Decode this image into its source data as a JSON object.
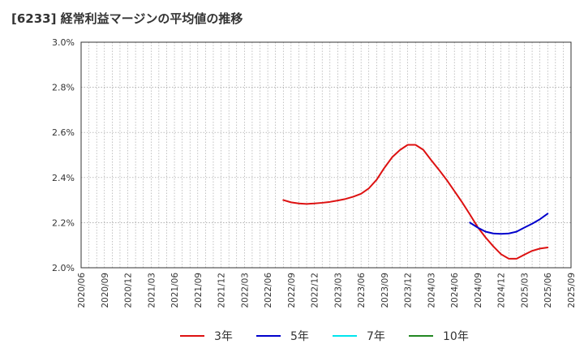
{
  "chart_data": {
    "type": "line",
    "title": "[6233]  経常利益マージンの平均値の推移",
    "xlabel": "",
    "ylabel": "",
    "ylim": [
      2.0,
      3.0
    ],
    "yticks": [
      "2.0%",
      "2.2%",
      "2.4%",
      "2.6%",
      "2.8%",
      "3.0%"
    ],
    "ytick_values": [
      2.0,
      2.2,
      2.4,
      2.6,
      2.8,
      3.0
    ],
    "x_range": [
      "2020/06",
      "2025/09"
    ],
    "xticks": [
      "2020/06",
      "2020/09",
      "2020/12",
      "2021/03",
      "2021/06",
      "2021/09",
      "2021/12",
      "2022/03",
      "2022/06",
      "2022/09",
      "2022/12",
      "2023/03",
      "2023/06",
      "2023/09",
      "2023/12",
      "2024/03",
      "2024/06",
      "2024/09",
      "2024/12",
      "2025/03",
      "2025/06",
      "2025/09"
    ],
    "grid": true,
    "legend_position": "bottom",
    "series": [
      {
        "name": "3年",
        "color": "#dd1111",
        "x": [
          "2022/08",
          "2022/09",
          "2022/10",
          "2022/11",
          "2022/12",
          "2023/01",
          "2023/02",
          "2023/03",
          "2023/04",
          "2023/05",
          "2023/06",
          "2023/07",
          "2023/08",
          "2023/09",
          "2023/10",
          "2023/11",
          "2023/12",
          "2024/01",
          "2024/02",
          "2024/03",
          "2024/04",
          "2024/05",
          "2024/06",
          "2024/07",
          "2024/08",
          "2024/09",
          "2024/10",
          "2024/11",
          "2024/12",
          "2025/01",
          "2025/02",
          "2025/03",
          "2025/04",
          "2025/05",
          "2025/06"
        ],
        "values": [
          2.3,
          2.29,
          2.285,
          2.283,
          2.285,
          2.288,
          2.292,
          2.298,
          2.305,
          2.315,
          2.328,
          2.352,
          2.39,
          2.443,
          2.49,
          2.522,
          2.545,
          2.545,
          2.523,
          2.478,
          2.435,
          2.39,
          2.34,
          2.29,
          2.236,
          2.18,
          2.135,
          2.095,
          2.06,
          2.04,
          2.04,
          2.058,
          2.075,
          2.085,
          2.09
        ]
      },
      {
        "name": "5年",
        "color": "#0000cc",
        "x": [
          "2024/08",
          "2024/09",
          "2024/10",
          "2024/11",
          "2024/12",
          "2025/01",
          "2025/02",
          "2025/03",
          "2025/04",
          "2025/05",
          "2025/06"
        ],
        "values": [
          2.2,
          2.178,
          2.16,
          2.152,
          2.15,
          2.152,
          2.16,
          2.178,
          2.195,
          2.215,
          2.24
        ]
      },
      {
        "name": "7年",
        "color": "#00e5ee",
        "x": [],
        "values": []
      },
      {
        "name": "10年",
        "color": "#228822",
        "x": [],
        "values": []
      }
    ]
  }
}
